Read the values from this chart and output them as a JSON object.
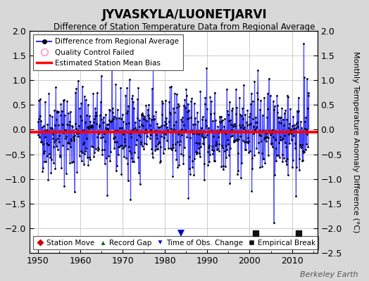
{
  "title": "JYVASKYLA/LUONETJARVI",
  "subtitle": "Difference of Station Temperature Data from Regional Average",
  "ylabel": "Monthly Temperature Anomaly Difference (°C)",
  "xlim": [
    1948,
    2016
  ],
  "ylim": [
    -2.5,
    2.0
  ],
  "yticks_left": [
    -2,
    -1.5,
    -1,
    -0.5,
    0,
    0.5,
    1,
    1.5,
    2
  ],
  "yticks_right": [
    -2.5,
    -2,
    -1.5,
    -1,
    -0.5,
    0,
    0.5,
    1,
    1.5,
    2
  ],
  "xticks": [
    1950,
    1960,
    1970,
    1980,
    1990,
    2000,
    2010
  ],
  "mean_bias": -0.05,
  "bg_color": "#d8d8d8",
  "plot_bg": "#ffffff",
  "line_color": "#3333ff",
  "line_fill_color": "#aaaaff",
  "dot_color": "#000000",
  "bias_color": "#ff0000",
  "station_move_color": "#cc0000",
  "record_gap_color": "#006600",
  "obs_change_color": "#0000cc",
  "empirical_break_color": "#111111",
  "obs_changes": [
    1983.75
  ],
  "empirical_breaks": [
    2001.5,
    2011.5
  ],
  "watermark": "Berkeley Earth",
  "seed": 42
}
